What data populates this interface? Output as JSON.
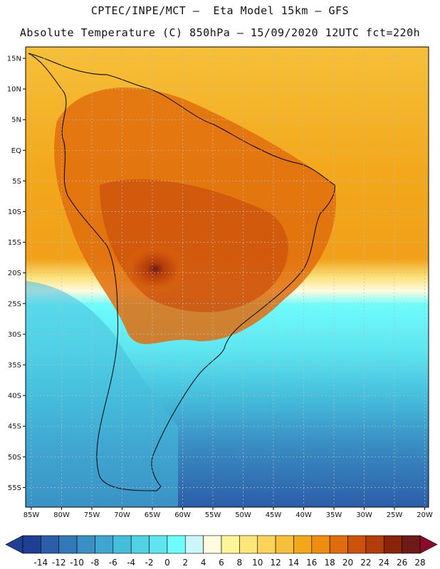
{
  "title_line1": "CPTEC/INPE/MCT –  Eta Model 15km – GFS",
  "title_line2": "Absolute Temperature (C) 850hPa – 15/09/2020 12UTC fct=220h",
  "lat_labels": [
    "15N",
    "10N",
    "5N",
    "EQ",
    "5S",
    "10S",
    "15S",
    "20S",
    "25S",
    "30S",
    "35S",
    "40S",
    "45S",
    "50S",
    "55S"
  ],
  "lon_labels": [
    "85W",
    "80W",
    "75W",
    "70W",
    "65W",
    "60W",
    "55W",
    "50W",
    "45W",
    "40W",
    "35W",
    "30W",
    "25W",
    "20W"
  ],
  "colorbar": {
    "labels": [
      "-14",
      "-12",
      "-10",
      "-8",
      "-6",
      "-4",
      "-2",
      "0",
      "2",
      "4",
      "6",
      "8",
      "10",
      "12",
      "14",
      "16",
      "18",
      "20",
      "22",
      "24",
      "26",
      "28"
    ],
    "colors": [
      "#1f3f94",
      "#2b5ea9",
      "#3378b8",
      "#3a8fc4",
      "#3fa6cf",
      "#45bedc",
      "#4fd2e6",
      "#5ee5f0",
      "#6ffcfc",
      "#cdf6fa",
      "#fffbe0",
      "#fdf59a",
      "#fde57a",
      "#fad45a",
      "#f6c038",
      "#f3a71a",
      "#ee8d10",
      "#e06d0d",
      "#cc520c",
      "#b23c0a",
      "#8a2408",
      "#6e1a16",
      "#8b0a2a"
    ]
  },
  "colors": {
    "frame": "#000000",
    "grid": "#bbbbbb",
    "coast": "#000000"
  }
}
